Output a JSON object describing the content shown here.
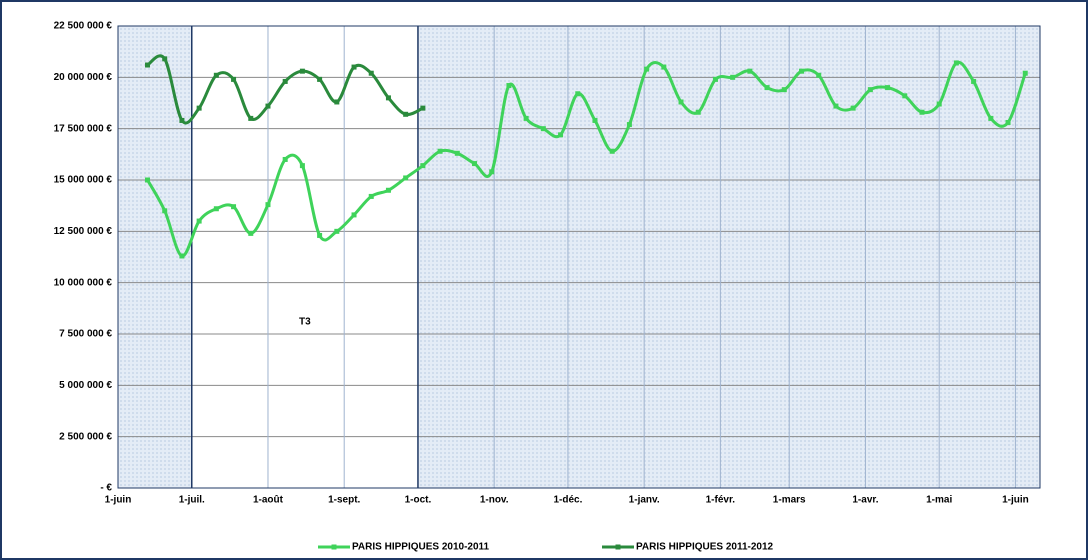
{
  "chart_data": {
    "type": "line",
    "annotation": {
      "text": "T3",
      "span": [
        30,
        122
      ]
    },
    "xlim": [
      0,
      375
    ],
    "xticks": [
      {
        "value": 0,
        "label": "1-juin"
      },
      {
        "value": 30,
        "label": "1-juil."
      },
      {
        "value": 61,
        "label": "1-août"
      },
      {
        "value": 92,
        "label": "1-sept."
      },
      {
        "value": 122,
        "label": "1-oct."
      },
      {
        "value": 153,
        "label": "1-nov."
      },
      {
        "value": 183,
        "label": "1-déc."
      },
      {
        "value": 214,
        "label": "1-janv."
      },
      {
        "value": 245,
        "label": "1-févr."
      },
      {
        "value": 273,
        "label": "1-mars"
      },
      {
        "value": 304,
        "label": "1-avr."
      },
      {
        "value": 334,
        "label": "1-mai"
      },
      {
        "value": 365,
        "label": "1-juin"
      }
    ],
    "ylim": [
      0,
      22500000
    ],
    "yticks": [
      {
        "value": 0,
        "label": "-   €"
      },
      {
        "value": 2500000,
        "label": "2 500 000 €"
      },
      {
        "value": 5000000,
        "label": "5 000 000 €"
      },
      {
        "value": 7500000,
        "label": "7 500 000 €"
      },
      {
        "value": 10000000,
        "label": "10 000 000 €"
      },
      {
        "value": 12500000,
        "label": "12 500 000 €"
      },
      {
        "value": 15000000,
        "label": "15 000 000 €"
      },
      {
        "value": 17500000,
        "label": "17 500 000 €"
      },
      {
        "value": 20000000,
        "label": "20 000 000 €"
      },
      {
        "value": 22500000,
        "label": "22 500 000 €"
      }
    ],
    "grid": true,
    "series": [
      {
        "name": "PARIS HIPPIQUES 2010-2011",
        "color": "#3fd35a",
        "x": [
          12,
          19,
          26,
          33,
          40,
          47,
          54,
          61,
          68,
          75,
          82,
          89,
          96,
          103,
          110,
          117,
          124,
          131,
          138,
          145,
          152,
          159,
          166,
          173,
          180,
          187,
          194,
          201,
          208,
          215,
          222,
          229,
          236,
          243,
          250,
          257,
          264,
          271,
          278,
          285,
          292,
          299,
          306,
          313,
          320,
          327,
          334,
          341,
          348,
          355,
          362,
          369
        ],
        "values": [
          15000000,
          13500000,
          11300000,
          13000000,
          13600000,
          13700000,
          12400000,
          13800000,
          16000000,
          15700000,
          12300000,
          12500000,
          13300000,
          14200000,
          14500000,
          15100000,
          15700000,
          16400000,
          16300000,
          15800000,
          15400000,
          19600000,
          18000000,
          17500000,
          17200000,
          19200000,
          17900000,
          16400000,
          17700000,
          20400000,
          20500000,
          18800000,
          18300000,
          19900000,
          20000000,
          20300000,
          19500000,
          19400000,
          20300000,
          20100000,
          18600000,
          18500000,
          19400000,
          19500000,
          19100000,
          18300000,
          18700000,
          20700000,
          19800000,
          18000000,
          17800000,
          20200000
        ]
      },
      {
        "name": "PARIS HIPPIQUES 2011-2012",
        "color": "#2a8a3c",
        "x": [
          12,
          19,
          26,
          33,
          40,
          47,
          54,
          61,
          68,
          75,
          82,
          89,
          96,
          103,
          110,
          117,
          124
        ],
        "values": [
          20600000,
          20900000,
          17900000,
          18500000,
          20100000,
          19900000,
          18000000,
          18600000,
          19800000,
          20300000,
          19900000,
          18800000,
          20500000,
          20200000,
          19000000,
          18200000,
          18500000
        ]
      }
    ]
  }
}
